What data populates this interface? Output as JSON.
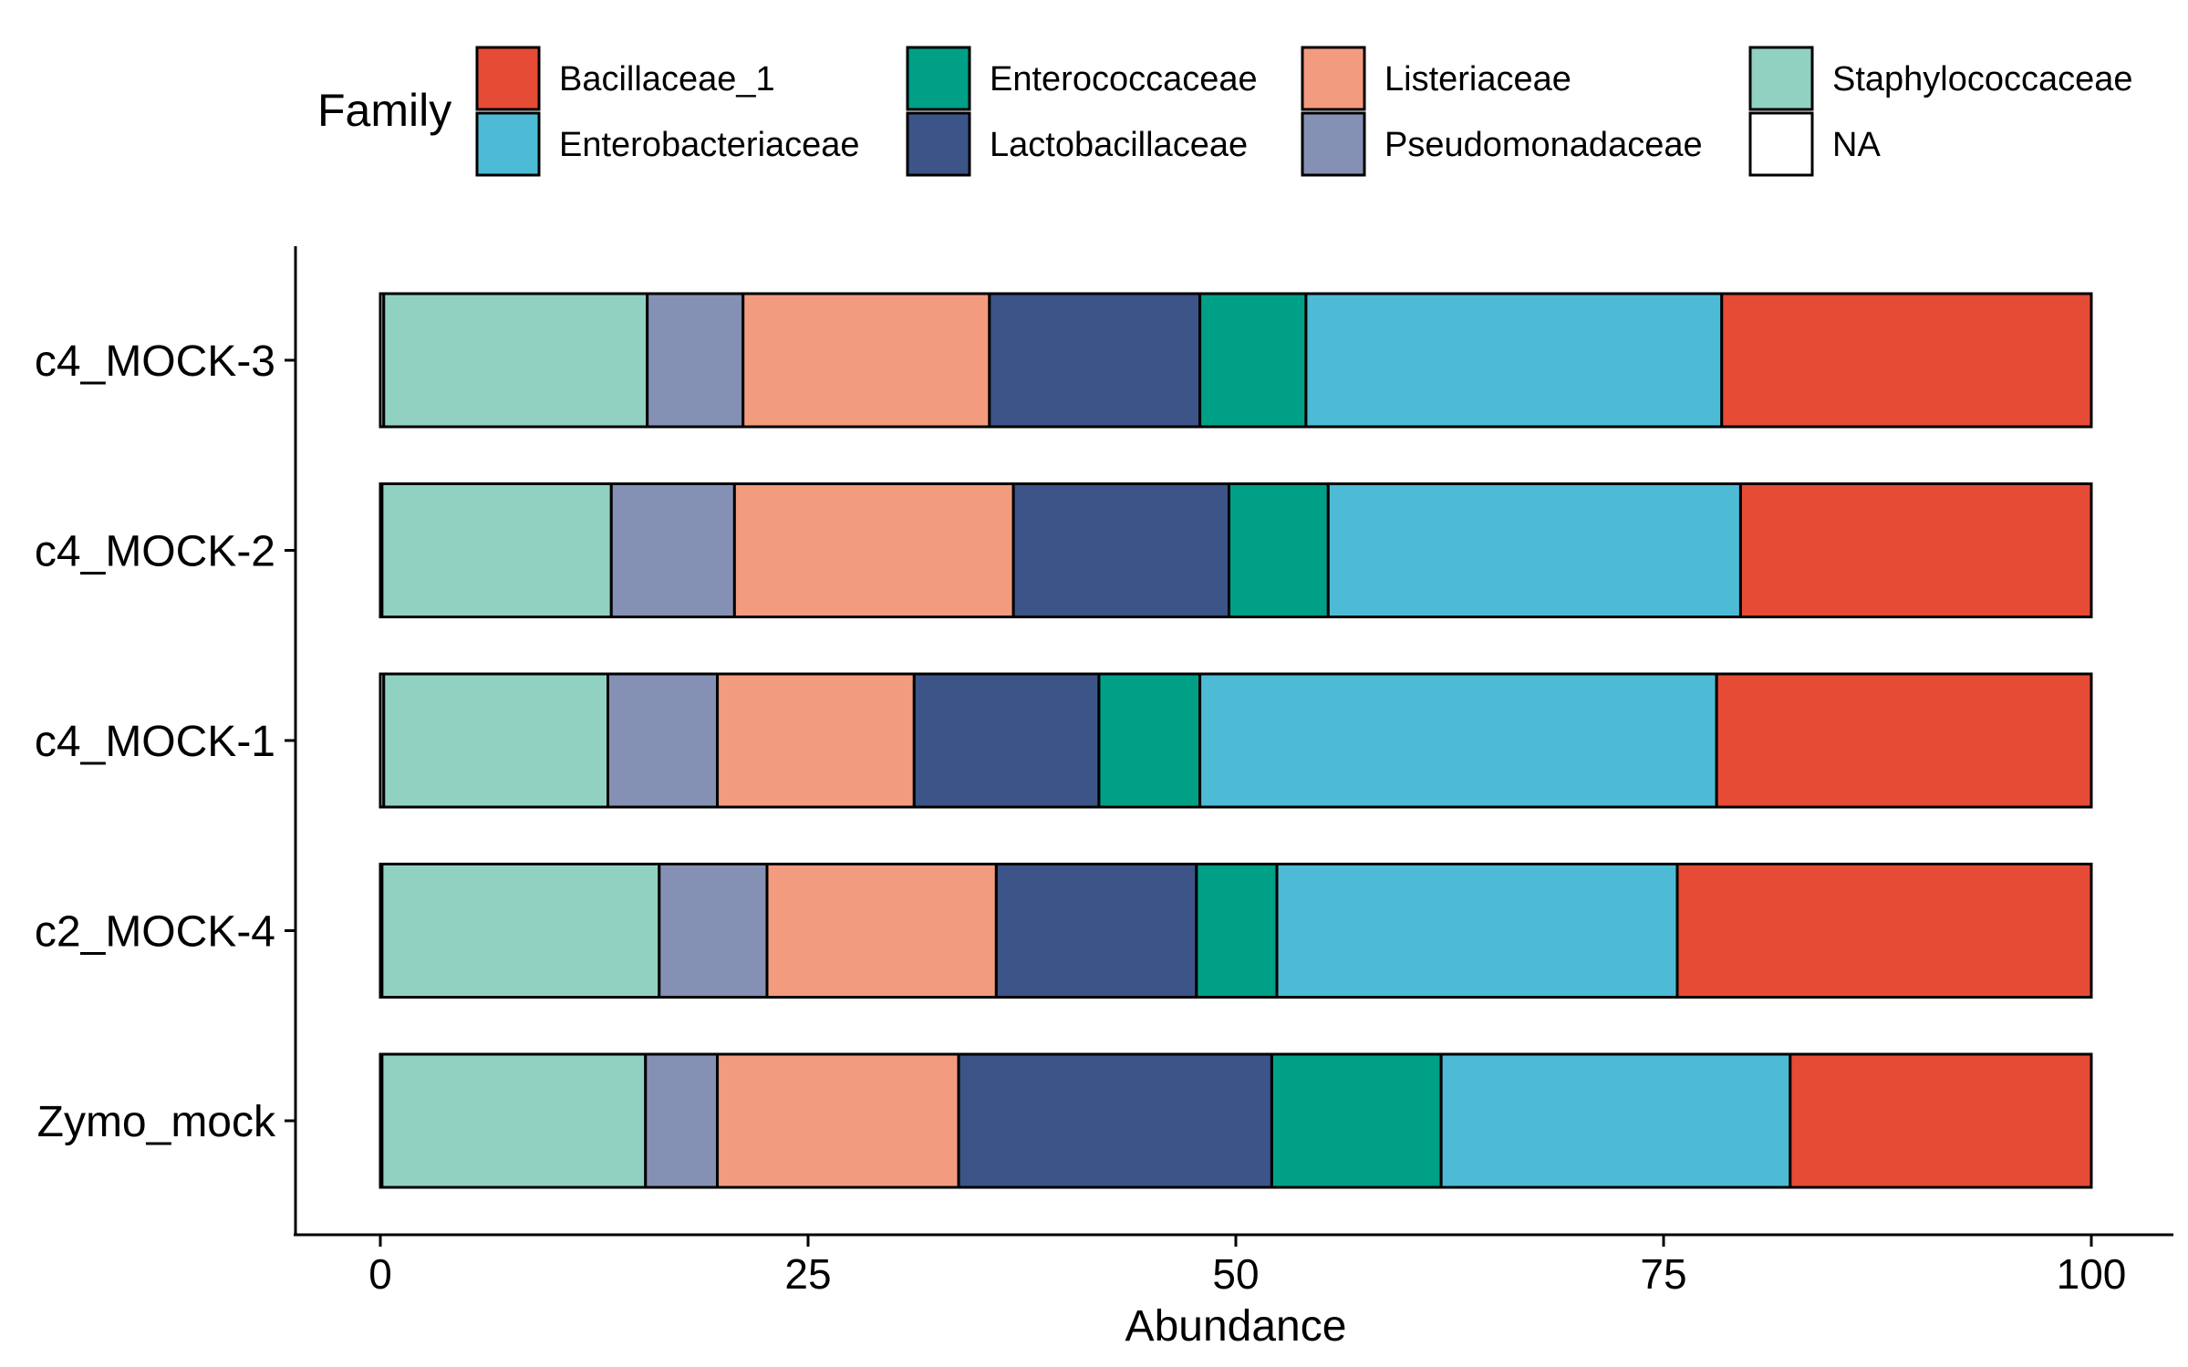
{
  "chart_data": {
    "type": "bar",
    "orientation": "horizontal",
    "stacked": true,
    "xlabel": "Abundance",
    "ylabel": "",
    "xlim": [
      0,
      100
    ],
    "x_ticks": [
      0,
      25,
      50,
      75,
      100
    ],
    "grid": false,
    "legend": {
      "title": "Family",
      "position": "top"
    },
    "categories": [
      "c4_MOCK-3",
      "c4_MOCK-2",
      "c4_MOCK-1",
      "c2_MOCK-4",
      "Zymo_mock"
    ],
    "series": [
      {
        "name": "NA",
        "color": "#FFFFFF",
        "values": [
          0.2,
          0.1,
          0.2,
          0.1,
          0.1
        ]
      },
      {
        "name": "Staphylococcaceae",
        "color": "#91D1C2",
        "values": [
          15.4,
          13.4,
          13.1,
          16.2,
          15.4
        ]
      },
      {
        "name": "Pseudomonadaceae",
        "color": "#8491B4",
        "values": [
          5.6,
          7.2,
          6.4,
          6.3,
          4.2
        ]
      },
      {
        "name": "Listeriaceae",
        "color": "#F39B7F",
        "values": [
          14.4,
          16.3,
          11.5,
          13.4,
          14.1
        ]
      },
      {
        "name": "Lactobacillaceae",
        "color": "#3C5488",
        "values": [
          12.3,
          12.6,
          10.8,
          11.7,
          18.3
        ]
      },
      {
        "name": "Enterococcaceae",
        "color": "#00A087",
        "values": [
          6.2,
          5.8,
          5.9,
          4.7,
          9.9
        ]
      },
      {
        "name": "Enterobacteriaceae",
        "color": "#4DBBD5",
        "values": [
          24.3,
          24.1,
          30.2,
          23.4,
          20.4
        ]
      },
      {
        "name": "Bacillaceae_1",
        "color": "#E64B35",
        "values": [
          21.6,
          20.5,
          21.9,
          24.2,
          17.6
        ]
      }
    ],
    "legend_order": [
      "Bacillaceae_1",
      "Enterobacteriaceae",
      "Enterococcaceae",
      "Lactobacillaceae",
      "Listeriaceae",
      "Pseudomonadaceae",
      "Staphylococcaceae",
      "NA"
    ]
  }
}
